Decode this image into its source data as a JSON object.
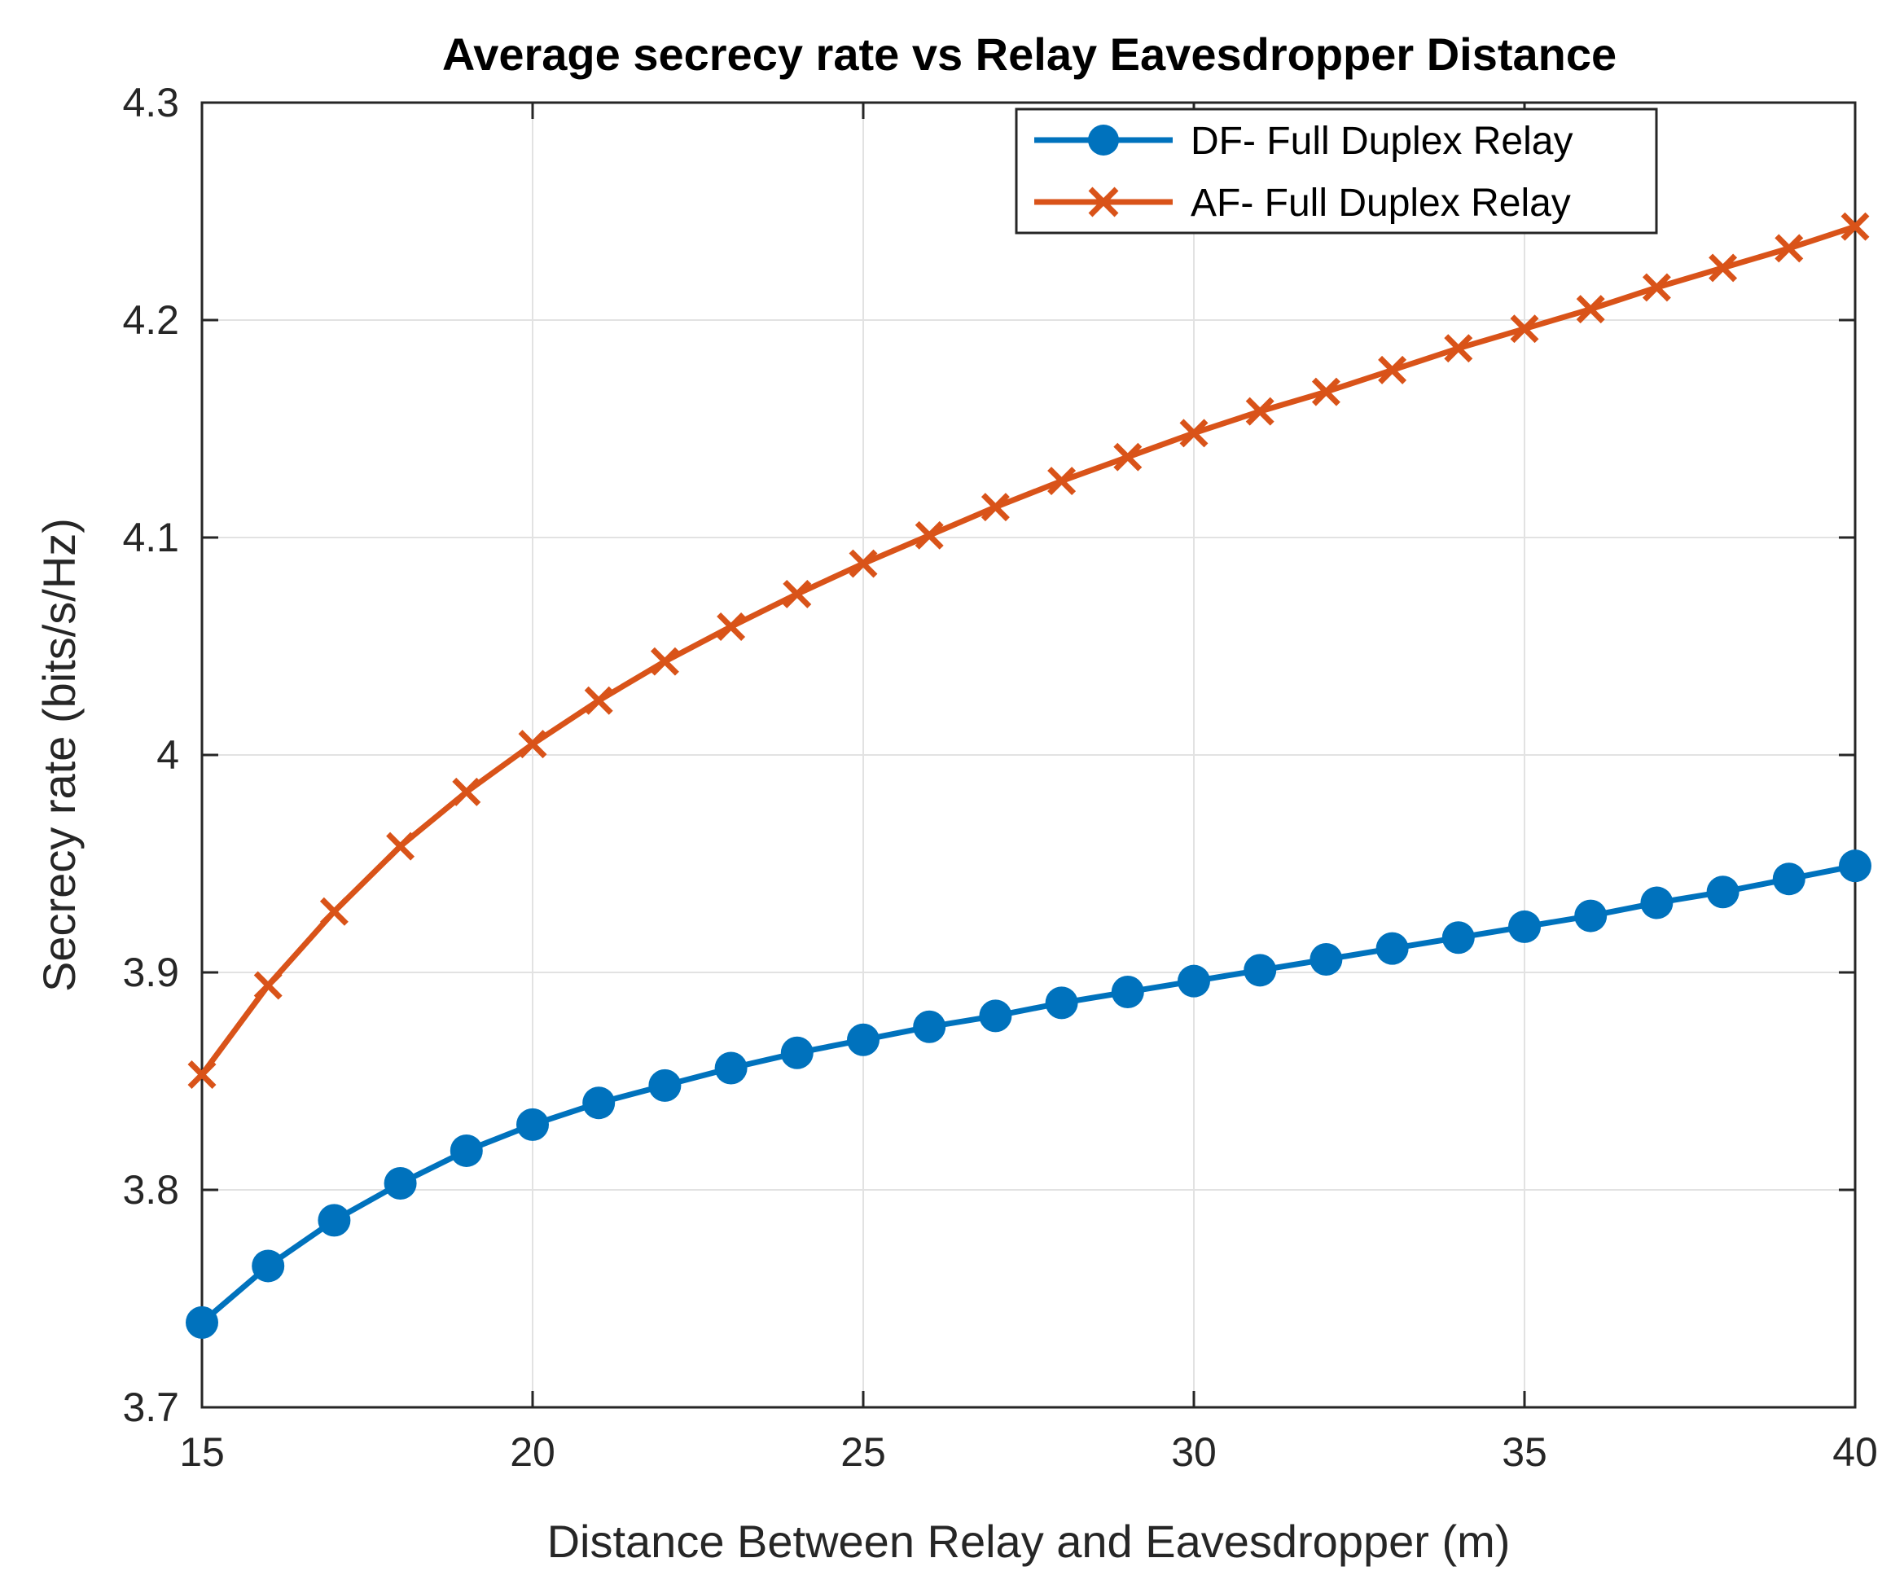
{
  "chart_data": {
    "type": "line",
    "title": "Average secrecy rate vs Relay Eavesdropper Distance",
    "xlabel": "Distance Between Relay and Eavesdropper (m)",
    "ylabel": "Secrecy rate (bits/s/Hz)",
    "xlim": [
      15,
      40
    ],
    "ylim": [
      3.7,
      4.3
    ],
    "xticks": [
      15,
      20,
      25,
      30,
      35,
      40
    ],
    "yticks": [
      3.7,
      3.8,
      3.9,
      4.0,
      4.1,
      4.2,
      4.3
    ],
    "xtick_labels": [
      "15",
      "20",
      "25",
      "30",
      "35",
      "40"
    ],
    "ytick_labels": [
      "3.7",
      "3.8",
      "3.9",
      "4",
      "4.1",
      "4.2",
      "4.3"
    ],
    "grid": true,
    "legend_position": "top-right",
    "x": [
      15,
      16,
      17,
      18,
      19,
      20,
      21,
      22,
      23,
      24,
      25,
      26,
      27,
      28,
      29,
      30,
      31,
      32,
      33,
      34,
      35,
      36,
      37,
      38,
      39,
      40
    ],
    "series": [
      {
        "name": "DF- Full Duplex Relay",
        "color": "#0072BD",
        "marker": "circle",
        "values": [
          3.739,
          3.765,
          3.786,
          3.803,
          3.818,
          3.83,
          3.84,
          3.848,
          3.856,
          3.863,
          3.869,
          3.875,
          3.88,
          3.886,
          3.891,
          3.896,
          3.901,
          3.906,
          3.911,
          3.916,
          3.921,
          3.926,
          3.932,
          3.937,
          3.943,
          3.949
        ]
      },
      {
        "name": "AF- Full Duplex Relay",
        "color": "#D95319",
        "marker": "x",
        "values": [
          3.853,
          3.894,
          3.928,
          3.958,
          3.983,
          4.005,
          4.025,
          4.043,
          4.059,
          4.074,
          4.088,
          4.101,
          4.114,
          4.126,
          4.137,
          4.148,
          4.158,
          4.167,
          4.177,
          4.187,
          4.196,
          4.205,
          4.215,
          4.224,
          4.233,
          4.243
        ]
      }
    ]
  }
}
